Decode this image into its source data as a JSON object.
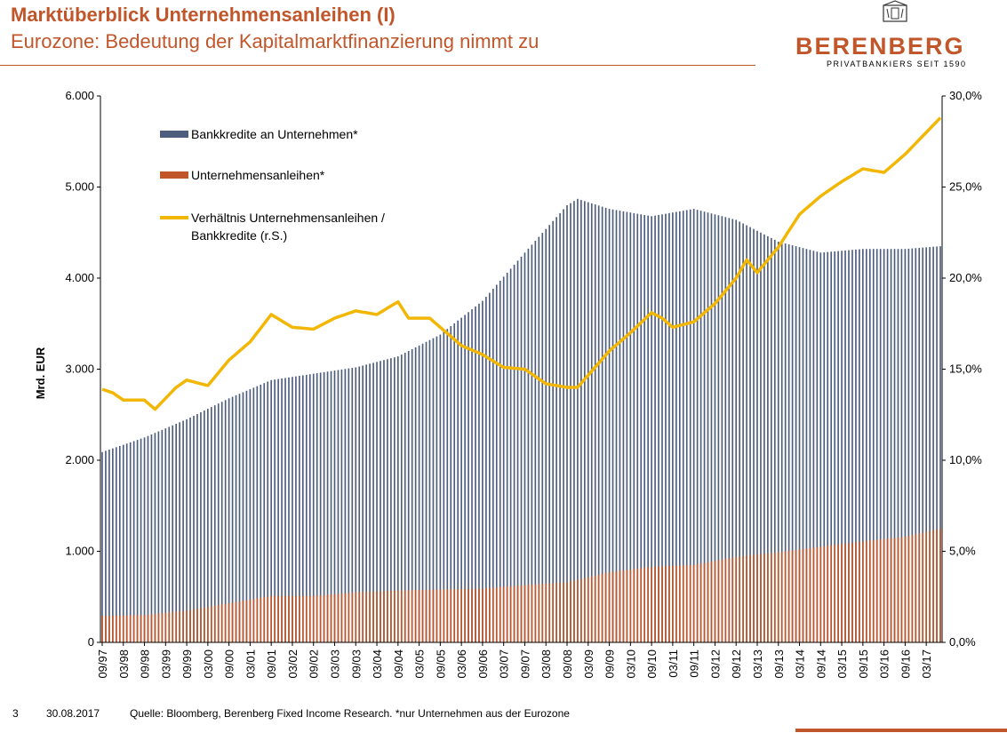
{
  "header": {
    "title": "Marktüberblick Unternehmensanleihen (I)",
    "subtitle": "Eurozone: Bedeutung der Kapitalmarktfinanzierung nimmt zu"
  },
  "logo": {
    "name": "BERENBERG",
    "tagline": "PRIVATBANKIERS SEIT 1590"
  },
  "footer": {
    "page_number": "3",
    "date": "30.08.2017",
    "source": "Quelle: Bloomberg, Berenberg Fixed Income Research.  *nur Unternehmen aus der Eurozone"
  },
  "colors": {
    "brand": "#c0562a",
    "bank_loans": "#4f5d7d",
    "bonds": "#c0562a",
    "ratio": "#f2b705"
  },
  "chart_data": {
    "type": "bar",
    "ylabel": "Mrd. EUR",
    "ylim": [
      0,
      6000
    ],
    "y2lim": [
      0,
      30
    ],
    "y_ticks": [
      "0",
      "1.000",
      "2.000",
      "3.000",
      "4.000",
      "5.000",
      "6.000"
    ],
    "y2_ticks": [
      "0,0%",
      "5,0%",
      "10,0%",
      "15,0%",
      "20,0%",
      "25,0%",
      "30,0%"
    ],
    "x_ticks": [
      "09/97",
      "03/98",
      "09/98",
      "03/99",
      "09/99",
      "03/00",
      "09/00",
      "03/01",
      "09/01",
      "03/02",
      "09/02",
      "03/03",
      "09/03",
      "03/04",
      "09/04",
      "03/05",
      "09/05",
      "03/06",
      "09/06",
      "03/07",
      "09/07",
      "03/08",
      "09/08",
      "03/09",
      "09/09",
      "03/10",
      "09/10",
      "03/11",
      "09/11",
      "03/12",
      "09/12",
      "03/13",
      "09/13",
      "03/14",
      "09/14",
      "03/15",
      "09/15",
      "03/16",
      "09/16",
      "03/17"
    ],
    "x_start": "09/97",
    "x_end": "07/17",
    "legend": [
      "Bankkredite an Unternehmen*",
      "Unternehmensanleihen*",
      "Verhältnis Unternehmensanleihen / Bankkredite (r.S.)"
    ],
    "legend_placement": "top-left",
    "series": [
      {
        "name": "Bankkredite an Unternehmen*",
        "axis": "left",
        "keyframes": [
          [
            "09/97",
            2090
          ],
          [
            "09/98",
            2250
          ],
          [
            "09/99",
            2450
          ],
          [
            "09/00",
            2680
          ],
          [
            "09/01",
            2880
          ],
          [
            "09/02",
            2950
          ],
          [
            "09/03",
            3020
          ],
          [
            "09/04",
            3140
          ],
          [
            "09/05",
            3380
          ],
          [
            "09/06",
            3750
          ],
          [
            "09/07",
            4280
          ],
          [
            "09/08",
            4800
          ],
          [
            "12/08",
            4870
          ],
          [
            "09/09",
            4760
          ],
          [
            "09/10",
            4680
          ],
          [
            "09/11",
            4760
          ],
          [
            "09/12",
            4640
          ],
          [
            "09/13",
            4400
          ],
          [
            "09/14",
            4280
          ],
          [
            "09/15",
            4320
          ],
          [
            "09/16",
            4320
          ],
          [
            "07/17",
            4350
          ]
        ]
      },
      {
        "name": "Unternehmensanleihen*",
        "axis": "left",
        "keyframes": [
          [
            "09/97",
            290
          ],
          [
            "09/98",
            300
          ],
          [
            "09/99",
            350
          ],
          [
            "09/00",
            430
          ],
          [
            "09/01",
            510
          ],
          [
            "09/02",
            510
          ],
          [
            "09/03",
            550
          ],
          [
            "09/04",
            570
          ],
          [
            "09/05",
            580
          ],
          [
            "09/06",
            590
          ],
          [
            "09/07",
            630
          ],
          [
            "09/08",
            660
          ],
          [
            "09/09",
            770
          ],
          [
            "09/10",
            830
          ],
          [
            "09/11",
            850
          ],
          [
            "09/12",
            940
          ],
          [
            "09/13",
            990
          ],
          [
            "09/14",
            1050
          ],
          [
            "09/15",
            1110
          ],
          [
            "09/16",
            1160
          ],
          [
            "07/17",
            1250
          ]
        ]
      },
      {
        "name": "Verhältnis Unternehmensanleihen / Bankkredite (r.S.)",
        "axis": "right",
        "type": "line",
        "keyframes": [
          [
            "09/97",
            13.9
          ],
          [
            "12/97",
            13.7
          ],
          [
            "03/98",
            13.3
          ],
          [
            "09/98",
            13.3
          ],
          [
            "12/98",
            12.8
          ],
          [
            "06/99",
            14.0
          ],
          [
            "09/99",
            14.4
          ],
          [
            "03/00",
            14.1
          ],
          [
            "09/00",
            15.5
          ],
          [
            "03/01",
            16.5
          ],
          [
            "09/01",
            18.0
          ],
          [
            "03/02",
            17.3
          ],
          [
            "09/02",
            17.2
          ],
          [
            "03/03",
            17.8
          ],
          [
            "09/03",
            18.2
          ],
          [
            "03/04",
            18.0
          ],
          [
            "09/04",
            18.7
          ],
          [
            "12/04",
            17.8
          ],
          [
            "06/05",
            17.8
          ],
          [
            "09/05",
            17.3
          ],
          [
            "03/06",
            16.3
          ],
          [
            "09/06",
            15.8
          ],
          [
            "03/07",
            15.1
          ],
          [
            "09/07",
            15.0
          ],
          [
            "03/08",
            14.2
          ],
          [
            "09/08",
            14.0
          ],
          [
            "12/08",
            14.0
          ],
          [
            "09/09",
            16.0
          ],
          [
            "03/10",
            17.0
          ],
          [
            "09/10",
            18.1
          ],
          [
            "12/10",
            17.8
          ],
          [
            "03/11",
            17.3
          ],
          [
            "09/11",
            17.6
          ],
          [
            "03/12",
            18.6
          ],
          [
            "09/12",
            20.0
          ],
          [
            "12/12",
            21.0
          ],
          [
            "03/13",
            20.3
          ],
          [
            "09/13",
            21.7
          ],
          [
            "03/14",
            23.5
          ],
          [
            "09/14",
            24.5
          ],
          [
            "03/15",
            25.3
          ],
          [
            "09/15",
            26.0
          ],
          [
            "03/16",
            25.8
          ],
          [
            "09/16",
            26.8
          ],
          [
            "03/17",
            28.0
          ],
          [
            "07/17",
            28.8
          ]
        ]
      }
    ]
  }
}
